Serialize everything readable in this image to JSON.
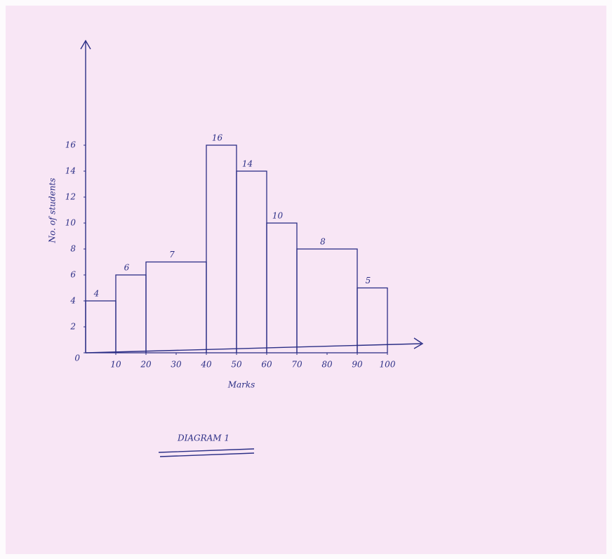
{
  "chart_data": {
    "type": "histogram",
    "bins": [
      0,
      10,
      20,
      40,
      50,
      60,
      70,
      90,
      100
    ],
    "values": [
      4,
      6,
      7,
      16,
      14,
      10,
      8,
      5
    ],
    "color": "#2c2f86",
    "xlabel": "Marks",
    "ylabel": "No. of students",
    "caption": "DIAGRAM 1",
    "xlim": [
      0,
      100
    ],
    "xticks": [
      0,
      10,
      20,
      30,
      40,
      50,
      60,
      70,
      80,
      90,
      100
    ],
    "ylim": [
      0,
      16
    ],
    "yticks": [
      0,
      2,
      4,
      6,
      8,
      10,
      12,
      14,
      16
    ]
  }
}
